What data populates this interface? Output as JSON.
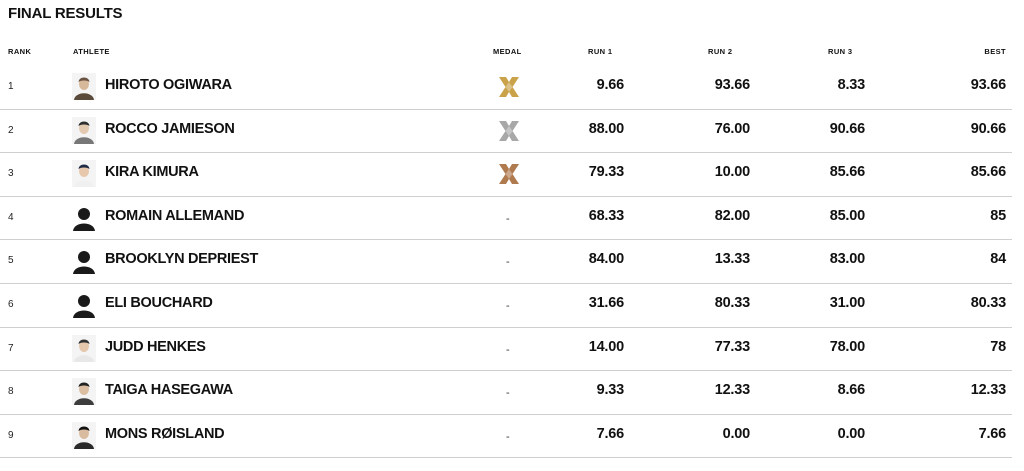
{
  "title": "FINAL RESULTS",
  "columns": {
    "rank": "RANK",
    "athlete": "ATHLETE",
    "medal": "MEDAL",
    "run1": "RUN 1",
    "run2": "RUN 2",
    "run3": "RUN 3",
    "best": "BEST"
  },
  "colors": {
    "gold": "#c9a24a",
    "silver": "#a8a8a8",
    "bronze": "#b07a4f"
  },
  "rows": [
    {
      "rank": "1",
      "athlete": "HIROTO OGIWARA",
      "medal": "gold",
      "medal_text": "",
      "run1": "9.66",
      "run2": "93.66",
      "run3": "8.33",
      "best": "93.66",
      "avatar": "photo"
    },
    {
      "rank": "2",
      "athlete": "ROCCO JAMIESON",
      "medal": "silver",
      "medal_text": "",
      "run1": "88.00",
      "run2": "76.00",
      "run3": "90.66",
      "best": "90.66",
      "avatar": "photo"
    },
    {
      "rank": "3",
      "athlete": "KIRA KIMURA",
      "medal": "bronze",
      "medal_text": "",
      "run1": "79.33",
      "run2": "10.00",
      "run3": "85.66",
      "best": "85.66",
      "avatar": "photo"
    },
    {
      "rank": "4",
      "athlete": "ROMAIN ALLEMAND",
      "medal": "none",
      "medal_text": "-",
      "run1": "68.33",
      "run2": "82.00",
      "run3": "85.00",
      "best": "85",
      "avatar": "silhouette"
    },
    {
      "rank": "5",
      "athlete": "BROOKLYN DEPRIEST",
      "medal": "none",
      "medal_text": "-",
      "run1": "84.00",
      "run2": "13.33",
      "run3": "83.00",
      "best": "84",
      "avatar": "silhouette"
    },
    {
      "rank": "6",
      "athlete": "ELI BOUCHARD",
      "medal": "none",
      "medal_text": "-",
      "run1": "31.66",
      "run2": "80.33",
      "run3": "31.00",
      "best": "80.33",
      "avatar": "silhouette"
    },
    {
      "rank": "7",
      "athlete": "JUDD HENKES",
      "medal": "none",
      "medal_text": "-",
      "run1": "14.00",
      "run2": "77.33",
      "run3": "78.00",
      "best": "78",
      "avatar": "photo"
    },
    {
      "rank": "8",
      "athlete": "TAIGA HASEGAWA",
      "medal": "none",
      "medal_text": "-",
      "run1": "9.33",
      "run2": "12.33",
      "run3": "8.66",
      "best": "12.33",
      "avatar": "photo"
    },
    {
      "rank": "9",
      "athlete": "MONS RØISLAND",
      "medal": "none",
      "medal_text": "-",
      "run1": "7.66",
      "run2": "0.00",
      "run3": "0.00",
      "best": "7.66",
      "avatar": "photo"
    }
  ]
}
